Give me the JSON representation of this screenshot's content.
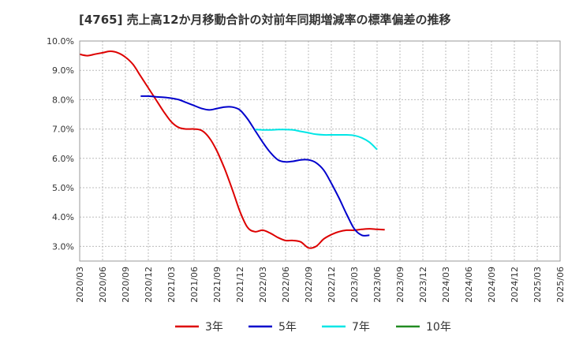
{
  "chart_data": {
    "type": "line",
    "title": "[4765]  売上高12か月移動合計の対前年同期増減率の標準偏差の推移",
    "xlabel": "",
    "ylabel": "",
    "x_ticks": [
      "2020/03",
      "2020/06",
      "2020/09",
      "2020/12",
      "2021/03",
      "2021/06",
      "2021/09",
      "2021/12",
      "2022/03",
      "2022/06",
      "2022/09",
      "2022/12",
      "2023/03",
      "2023/06",
      "2023/09",
      "2023/12",
      "2024/03",
      "2024/06",
      "2024/09",
      "2024/12",
      "2025/03",
      "2025/06"
    ],
    "y_ticks": [
      "3.0%",
      "4.0%",
      "5.0%",
      "6.0%",
      "7.0%",
      "8.0%",
      "9.0%",
      "10.0%"
    ],
    "ylim": [
      2.5,
      10.0
    ],
    "grid": true,
    "legend_position": "bottom",
    "series": [
      {
        "name": "3年",
        "color": "#dd0000",
        "values": [
          9.55,
          9.5,
          9.55,
          9.6,
          9.65,
          9.6,
          9.45,
          9.2,
          8.8,
          8.4,
          8.0,
          7.6,
          7.25,
          7.05,
          7.0,
          7.0,
          6.95,
          6.7,
          6.25,
          5.65,
          4.95,
          4.2,
          3.65,
          3.5,
          3.55,
          3.45,
          3.3,
          3.2,
          3.2,
          3.15,
          2.95,
          3.0,
          3.25,
          3.4,
          3.5,
          3.55,
          3.55,
          3.58,
          3.6,
          3.58,
          3.57
        ]
      },
      {
        "name": "5年",
        "color": "#0000cc",
        "values": [
          null,
          null,
          null,
          null,
          null,
          null,
          null,
          null,
          8.12,
          8.12,
          8.1,
          8.08,
          8.05,
          8.0,
          7.9,
          7.8,
          7.7,
          7.65,
          7.7,
          7.75,
          7.75,
          7.65,
          7.35,
          6.95,
          6.55,
          6.2,
          5.95,
          5.88,
          5.9,
          5.95,
          5.95,
          5.85,
          5.6,
          5.15,
          4.65,
          4.1,
          3.6,
          3.38,
          3.38
        ]
      },
      {
        "name": "7年",
        "color": "#00e6e6",
        "values": [
          null,
          null,
          null,
          null,
          null,
          null,
          null,
          null,
          null,
          null,
          null,
          null,
          null,
          null,
          null,
          null,
          null,
          null,
          null,
          null,
          null,
          null,
          null,
          6.98,
          6.97,
          6.97,
          6.98,
          6.98,
          6.97,
          6.92,
          6.87,
          6.82,
          6.8,
          6.8,
          6.8,
          6.8,
          6.78,
          6.7,
          6.55,
          6.3
        ]
      },
      {
        "name": "10年",
        "color": "#228b22",
        "values": []
      }
    ]
  }
}
